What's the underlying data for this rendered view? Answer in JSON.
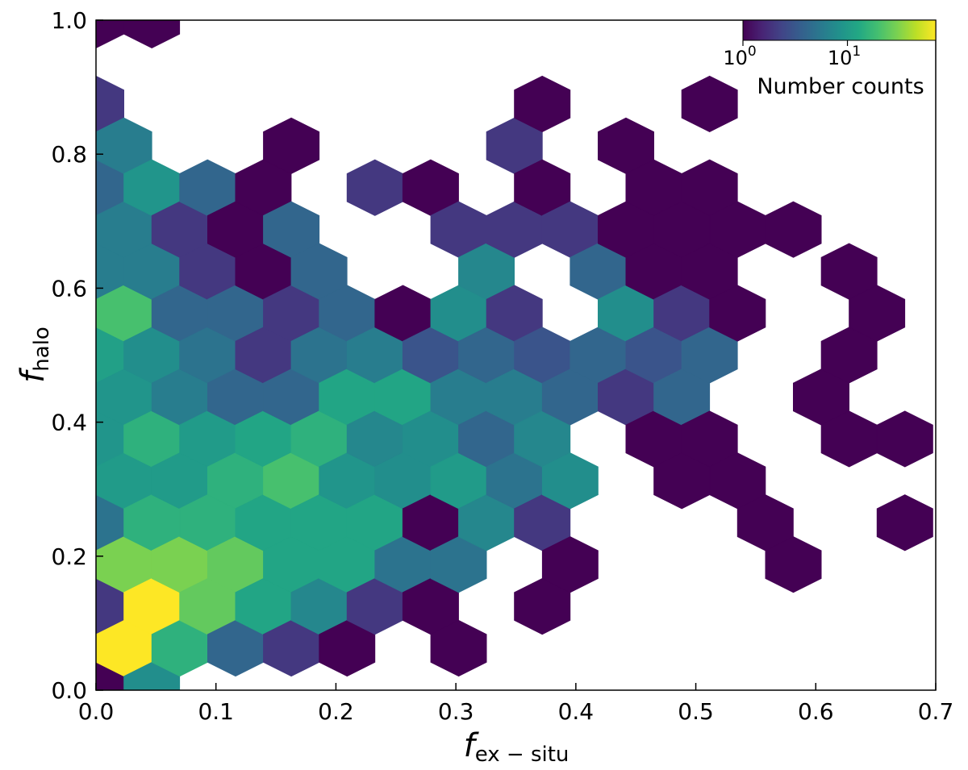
{
  "chart_data": {
    "type": "hexbin",
    "x_axis": {
      "symbol": "f",
      "subscript": "ex − situ",
      "range": [
        0.0,
        0.7
      ],
      "ticks": [
        0.0,
        0.1,
        0.2,
        0.3,
        0.4,
        0.5,
        0.6,
        0.7
      ],
      "tick_labels": [
        "0.0",
        "0.1",
        "0.2",
        "0.3",
        "0.4",
        "0.5",
        "0.6",
        "0.7"
      ]
    },
    "y_axis": {
      "symbol": "f",
      "subscript": "halo",
      "range": [
        0.0,
        1.0
      ],
      "ticks": [
        0.0,
        0.2,
        0.4,
        0.6,
        0.8,
        1.0
      ],
      "tick_labels": [
        "0.0",
        "0.2",
        "0.4",
        "0.6",
        "0.8",
        "1.0"
      ]
    },
    "colorbar": {
      "label": "Number counts",
      "colormap": "viridis",
      "scale": "log",
      "range": [
        1,
        70
      ],
      "ticks": [
        {
          "value": 1,
          "base": "10",
          "exponent": "0"
        },
        {
          "value": 10,
          "base": "10",
          "exponent": "1"
        }
      ],
      "placement": "top-right inset"
    },
    "grid": false,
    "hex_grid": {
      "x_step": 0.0465,
      "y_step": 0.0625,
      "x_origin": 0.0,
      "y_origin": 0.0
    },
    "cells": [
      [
        0.0,
        0.0,
        1
      ],
      [
        0.0,
        0.125,
        2
      ],
      [
        0.0,
        0.25,
        5
      ],
      [
        0.0,
        0.375,
        9
      ],
      [
        0.0,
        0.5,
        11
      ],
      [
        0.0,
        0.625,
        6
      ],
      [
        0.0,
        0.75,
        4
      ],
      [
        0.0,
        0.875,
        2
      ],
      [
        0.0,
        1.0,
        1
      ],
      [
        0.0233,
        0.0625,
        70
      ],
      [
        0.0233,
        0.1875,
        30
      ],
      [
        0.0233,
        0.3125,
        10
      ],
      [
        0.0233,
        0.4375,
        9
      ],
      [
        0.0233,
        0.5625,
        20
      ],
      [
        0.0233,
        0.6875,
        6
      ],
      [
        0.0233,
        0.8125,
        6
      ],
      [
        0.0465,
        0.0,
        8
      ],
      [
        0.0465,
        0.125,
        70
      ],
      [
        0.0465,
        0.25,
        15
      ],
      [
        0.0465,
        0.375,
        15
      ],
      [
        0.0465,
        0.5,
        8
      ],
      [
        0.0465,
        0.625,
        6
      ],
      [
        0.0465,
        0.75,
        9
      ],
      [
        0.0465,
        1.0,
        1
      ],
      [
        0.0698,
        0.0625,
        15
      ],
      [
        0.0698,
        0.1875,
        30
      ],
      [
        0.0698,
        0.3125,
        10
      ],
      [
        0.0698,
        0.4375,
        6
      ],
      [
        0.0698,
        0.5625,
        4
      ],
      [
        0.0698,
        0.6875,
        2
      ],
      [
        0.093,
        0.125,
        25
      ],
      [
        0.093,
        0.25,
        15
      ],
      [
        0.093,
        0.375,
        10
      ],
      [
        0.093,
        0.5,
        5
      ],
      [
        0.093,
        0.625,
        2
      ],
      [
        0.093,
        0.75,
        4
      ],
      [
        0.1163,
        0.0625,
        4
      ],
      [
        0.1163,
        0.1875,
        25
      ],
      [
        0.1163,
        0.3125,
        15
      ],
      [
        0.1163,
        0.4375,
        4
      ],
      [
        0.1163,
        0.5625,
        4
      ],
      [
        0.1163,
        0.6875,
        1
      ],
      [
        0.1395,
        0.125,
        12
      ],
      [
        0.1395,
        0.25,
        12
      ],
      [
        0.1395,
        0.375,
        12
      ],
      [
        0.1395,
        0.5,
        2
      ],
      [
        0.1395,
        0.625,
        1
      ],
      [
        0.1395,
        0.75,
        1
      ],
      [
        0.1628,
        0.0625,
        2
      ],
      [
        0.1628,
        0.1875,
        12
      ],
      [
        0.1628,
        0.3125,
        20
      ],
      [
        0.1628,
        0.4375,
        4
      ],
      [
        0.1628,
        0.5625,
        2
      ],
      [
        0.1628,
        0.6875,
        4
      ],
      [
        0.1628,
        0.8125,
        1
      ],
      [
        0.186,
        0.125,
        7
      ],
      [
        0.186,
        0.25,
        12
      ],
      [
        0.186,
        0.375,
        15
      ],
      [
        0.186,
        0.5,
        5
      ],
      [
        0.186,
        0.625,
        4
      ],
      [
        0.2093,
        0.0625,
        1
      ],
      [
        0.2093,
        0.1875,
        12
      ],
      [
        0.2093,
        0.3125,
        9
      ],
      [
        0.2093,
        0.4375,
        12
      ],
      [
        0.2093,
        0.5625,
        4
      ],
      [
        0.2325,
        0.125,
        2
      ],
      [
        0.2325,
        0.25,
        12
      ],
      [
        0.2325,
        0.375,
        7
      ],
      [
        0.2325,
        0.5,
        6
      ],
      [
        0.2325,
        0.75,
        2
      ],
      [
        0.2558,
        0.1875,
        5
      ],
      [
        0.2558,
        0.3125,
        8
      ],
      [
        0.2558,
        0.4375,
        12
      ],
      [
        0.2558,
        0.5625,
        1
      ],
      [
        0.279,
        0.125,
        1
      ],
      [
        0.279,
        0.25,
        1
      ],
      [
        0.279,
        0.375,
        8
      ],
      [
        0.279,
        0.5,
        3
      ],
      [
        0.279,
        0.75,
        1
      ],
      [
        0.3023,
        0.0625,
        1
      ],
      [
        0.3023,
        0.1875,
        5
      ],
      [
        0.3023,
        0.3125,
        10
      ],
      [
        0.3023,
        0.4375,
        6
      ],
      [
        0.3023,
        0.5625,
        8
      ],
      [
        0.3023,
        0.6875,
        2
      ],
      [
        0.3255,
        0.25,
        7
      ],
      [
        0.3255,
        0.375,
        4
      ],
      [
        0.3255,
        0.5,
        4
      ],
      [
        0.3255,
        0.625,
        7
      ],
      [
        0.3488,
        0.3125,
        5
      ],
      [
        0.3488,
        0.4375,
        6
      ],
      [
        0.3488,
        0.5625,
        2
      ],
      [
        0.3488,
        0.6875,
        2
      ],
      [
        0.3488,
        0.8125,
        2
      ],
      [
        0.372,
        0.125,
        1
      ],
      [
        0.372,
        0.25,
        2
      ],
      [
        0.372,
        0.375,
        7
      ],
      [
        0.372,
        0.5,
        3
      ],
      [
        0.372,
        0.75,
        1
      ],
      [
        0.372,
        0.875,
        1
      ],
      [
        0.3953,
        0.1875,
        1
      ],
      [
        0.3953,
        0.3125,
        8
      ],
      [
        0.3953,
        0.4375,
        4
      ],
      [
        0.3953,
        0.6875,
        2
      ],
      [
        0.4185,
        0.5,
        4
      ],
      [
        0.4185,
        0.625,
        4
      ],
      [
        0.4418,
        0.4375,
        2
      ],
      [
        0.4418,
        0.5625,
        8
      ],
      [
        0.4418,
        0.6875,
        1
      ],
      [
        0.4418,
        0.8125,
        1
      ],
      [
        0.465,
        0.375,
        1
      ],
      [
        0.465,
        0.5,
        3
      ],
      [
        0.465,
        0.625,
        1
      ],
      [
        0.465,
        0.75,
        1
      ],
      [
        0.4883,
        0.3125,
        1
      ],
      [
        0.4883,
        0.4375,
        4
      ],
      [
        0.4883,
        0.5625,
        2
      ],
      [
        0.4883,
        0.6875,
        1
      ],
      [
        0.5115,
        0.375,
        1
      ],
      [
        0.5115,
        0.5,
        4
      ],
      [
        0.5115,
        0.625,
        1
      ],
      [
        0.5115,
        0.75,
        1
      ],
      [
        0.5115,
        0.875,
        1
      ],
      [
        0.5348,
        0.3125,
        1
      ],
      [
        0.5348,
        0.5625,
        1
      ],
      [
        0.5348,
        0.6875,
        1
      ],
      [
        0.558,
        0.25,
        1
      ],
      [
        0.5813,
        0.1875,
        1
      ],
      [
        0.5813,
        0.6875,
        1
      ],
      [
        0.6045,
        0.4375,
        1
      ],
      [
        0.6278,
        0.375,
        1
      ],
      [
        0.6278,
        0.5,
        1
      ],
      [
        0.6278,
        0.625,
        1
      ],
      [
        0.651,
        0.5625,
        1
      ],
      [
        0.6743,
        0.25,
        1
      ],
      [
        0.6743,
        0.375,
        1
      ]
    ]
  }
}
